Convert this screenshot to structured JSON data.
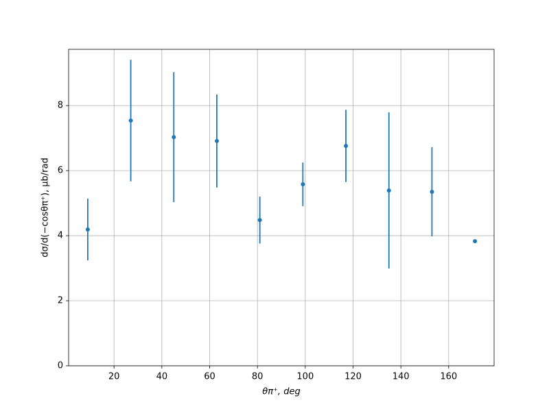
{
  "chart_data": {
    "type": "errorbar",
    "x_label": "θπ⁺, deg",
    "y_label": "dσ/d(−cosθπ⁺), μb/rad",
    "x": [
      9,
      27,
      45,
      63,
      81,
      99,
      117,
      135,
      153,
      171
    ],
    "values": [
      4.19,
      7.54,
      7.03,
      6.91,
      4.48,
      5.58,
      6.76,
      5.39,
      5.35,
      3.83
    ],
    "errors": [
      0.95,
      1.87,
      2.0,
      1.43,
      0.72,
      0.67,
      1.11,
      2.4,
      1.37,
      0
    ],
    "color": "#1f77b4",
    "xlim": [
      1,
      179
    ],
    "xticks": [
      20,
      40,
      60,
      80,
      100,
      120,
      140,
      160
    ],
    "ylim": [
      0,
      9.73
    ],
    "yticks": [
      0,
      2,
      4,
      6,
      8
    ],
    "grid": true
  }
}
